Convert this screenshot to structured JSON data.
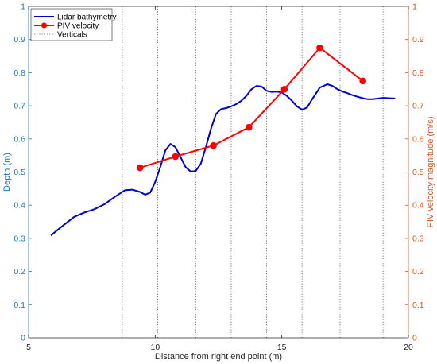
{
  "chart_data": {
    "type": "line",
    "xlabel": "Distance from right end point (m)",
    "ylabel_left": "Depth (m)",
    "ylabel_right": "PIV velocity magnitude (m/s)",
    "xlim": [
      5,
      20
    ],
    "ylim_left": [
      0,
      1
    ],
    "ylim_right": [
      0,
      1
    ],
    "x_ticks": [
      "5",
      "10",
      "15",
      "20"
    ],
    "y_ticks_left": [
      "0",
      "0.1",
      "0.2",
      "0.3",
      "0.4",
      "0.5",
      "0.6",
      "0.7",
      "0.8",
      "0.9",
      "1"
    ],
    "y_ticks_right": [
      "0",
      "0.1",
      "0.2",
      "0.3",
      "0.4",
      "0.5",
      "0.6",
      "0.7",
      "0.8",
      "0.9",
      "1"
    ],
    "colors": {
      "left_axis": "#1f77b4",
      "right_axis": "#d95319",
      "bathymetry": "#0000cc",
      "piv": "#ff0000",
      "verticals": "#555555"
    },
    "legend": {
      "placement": "top-left",
      "entries": [
        "Lidar bathymetry",
        "PIV velocity",
        "Verticals"
      ]
    },
    "verticals_x": [
      8.7,
      10.1,
      11.6,
      13.0,
      14.4,
      15.8,
      17.3,
      19.0
    ],
    "series": [
      {
        "name": "Lidar bathymetry",
        "axis": "left",
        "x": [
          5.9,
          6.3,
          6.8,
          7.2,
          7.6,
          8.0,
          8.4,
          8.8,
          9.1,
          9.4,
          9.6,
          9.8,
          10.0,
          10.2,
          10.4,
          10.6,
          10.8,
          11.0,
          11.2,
          11.4,
          11.6,
          11.8,
          12.0,
          12.2,
          12.4,
          12.6,
          12.8,
          13.0,
          13.2,
          13.4,
          13.6,
          13.8,
          14.0,
          14.2,
          14.4,
          14.6,
          14.8,
          15.0,
          15.2,
          15.4,
          15.6,
          15.8,
          16.0,
          16.2,
          16.5,
          16.8,
          17.0,
          17.2,
          17.4,
          17.6,
          17.8,
          18.0,
          18.2,
          18.4,
          18.6,
          18.8,
          19.0,
          19.2,
          19.45
        ],
        "values": [
          0.31,
          0.335,
          0.365,
          0.378,
          0.388,
          0.403,
          0.425,
          0.445,
          0.447,
          0.44,
          0.432,
          0.438,
          0.47,
          0.515,
          0.565,
          0.585,
          0.575,
          0.545,
          0.515,
          0.502,
          0.503,
          0.525,
          0.575,
          0.63,
          0.675,
          0.69,
          0.693,
          0.698,
          0.705,
          0.715,
          0.73,
          0.75,
          0.76,
          0.758,
          0.745,
          0.742,
          0.743,
          0.74,
          0.73,
          0.715,
          0.698,
          0.688,
          0.695,
          0.72,
          0.755,
          0.765,
          0.76,
          0.75,
          0.743,
          0.738,
          0.732,
          0.727,
          0.723,
          0.72,
          0.72,
          0.722,
          0.724,
          0.723,
          0.722
        ]
      },
      {
        "name": "PIV velocity",
        "axis": "right",
        "x": [
          9.4,
          10.8,
          12.3,
          13.7,
          15.1,
          16.5,
          18.2
        ],
        "values": [
          0.513,
          0.547,
          0.58,
          0.635,
          0.75,
          0.875,
          0.775
        ]
      }
    ]
  }
}
